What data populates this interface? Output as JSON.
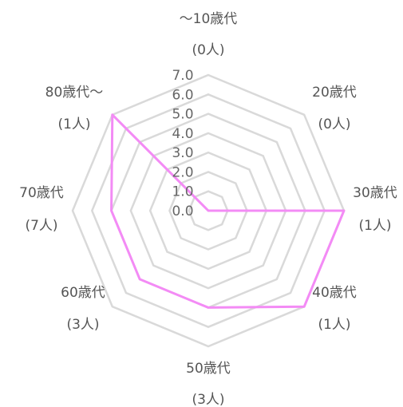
{
  "chart_data": {
    "type": "radar",
    "categories": [
      {
        "label": "～10歳代",
        "sub": "(0人)"
      },
      {
        "label": "20歳代",
        "sub": "(0人)"
      },
      {
        "label": "30歳代",
        "sub": "(1人)"
      },
      {
        "label": "40歳代",
        "sub": "(1人)"
      },
      {
        "label": "50歳代",
        "sub": "(3人)"
      },
      {
        "label": "60歳代",
        "sub": "(3人)"
      },
      {
        "label": "70歳代",
        "sub": "(7人)"
      },
      {
        "label": "80歳代～",
        "sub": "(1人)"
      }
    ],
    "series": [
      {
        "values": [
          0.0,
          0.0,
          7.0,
          7.0,
          5.0,
          5.0,
          5.0,
          7.0
        ],
        "color": "#f38bf5"
      }
    ],
    "ticks": [
      "0.0",
      "1.0",
      "2.0",
      "3.0",
      "4.0",
      "5.0",
      "6.0",
      "7.0"
    ],
    "rlim": [
      0,
      7
    ],
    "grid": true,
    "grid_color": "#d9d9d9"
  }
}
